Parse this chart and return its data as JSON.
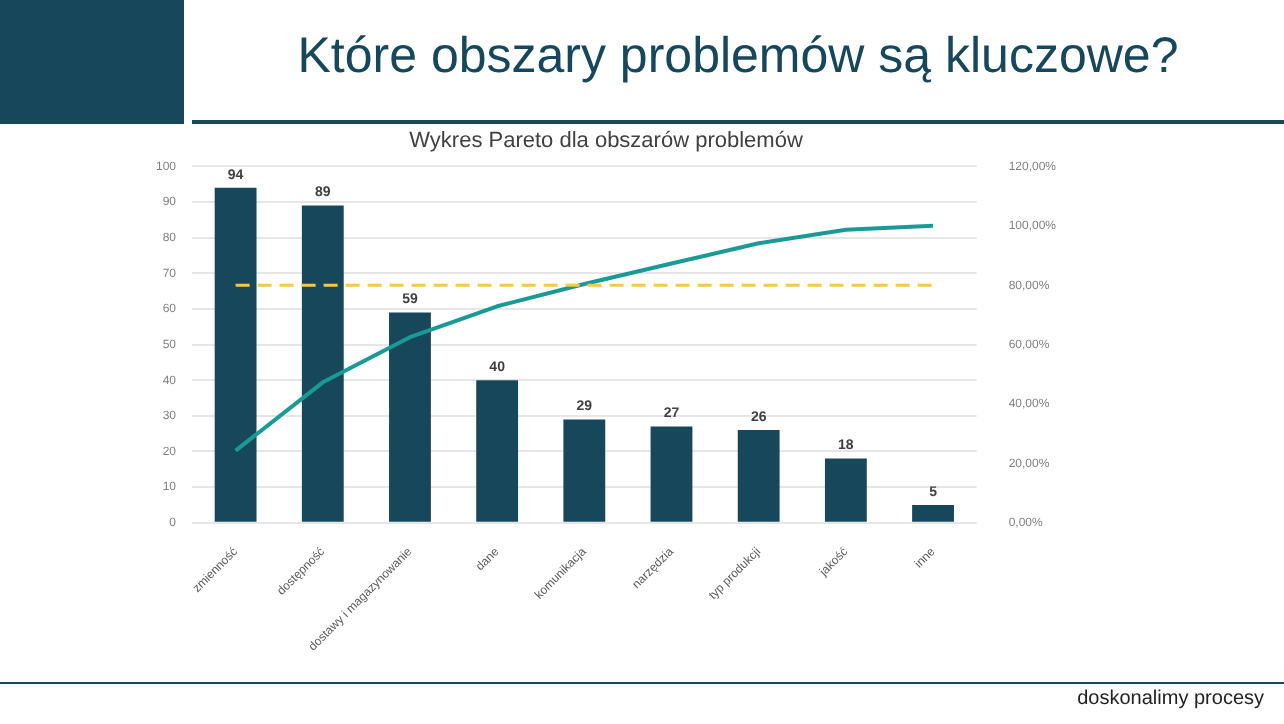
{
  "chart_data": {
    "type": "bar",
    "title": "Które obszary problemów są kluczowe?",
    "subtitle": "Wykres Pareto dla obszarów problemów",
    "categories": [
      "zmienność",
      "dostępność",
      "dostawy i magazynowanie",
      "dane",
      "komunikacja",
      "narzędzia",
      "typ produkcji",
      "jakość",
      "inne"
    ],
    "series": [
      {
        "color": "#17475a",
        "values": [
          94,
          89,
          59,
          40,
          29,
          27,
          26,
          18,
          5
        ],
        "value_labels": [
          "94",
          "89",
          "59",
          "40",
          "29",
          "27",
          "26",
          "18",
          "5"
        ]
      },
      {
        "type": "line",
        "axis": "y2",
        "color": "#1a9a96",
        "values": [
          24.3,
          47.3,
          62.5,
          72.9,
          80.4,
          87.3,
          94.1,
          98.7,
          100
        ]
      }
    ],
    "ylim": [
      0,
      100
    ],
    "yticks": [
      0,
      10,
      20,
      30,
      40,
      50,
      60,
      70,
      80,
      90,
      100
    ],
    "y2lim": [
      0,
      120
    ],
    "y2ticks": [
      {
        "value": 0,
        "label": "0,00%"
      },
      {
        "value": 20,
        "label": "20,00%"
      },
      {
        "value": 40,
        "label": "40,00%"
      },
      {
        "value": 60,
        "label": "60,00%"
      },
      {
        "value": 80,
        "label": "80,00%"
      },
      {
        "value": 100,
        "label": "100,00%"
      },
      {
        "value": 120,
        "label": "120,00%"
      }
    ],
    "ref_lines": [
      {
        "axis": "y2",
        "value": 80,
        "color": "#f2c94c",
        "line_style": "dashed"
      }
    ],
    "grid": "y",
    "legend": false,
    "marker": "none",
    "annotations": [
      "doskonalimy procesy"
    ]
  }
}
